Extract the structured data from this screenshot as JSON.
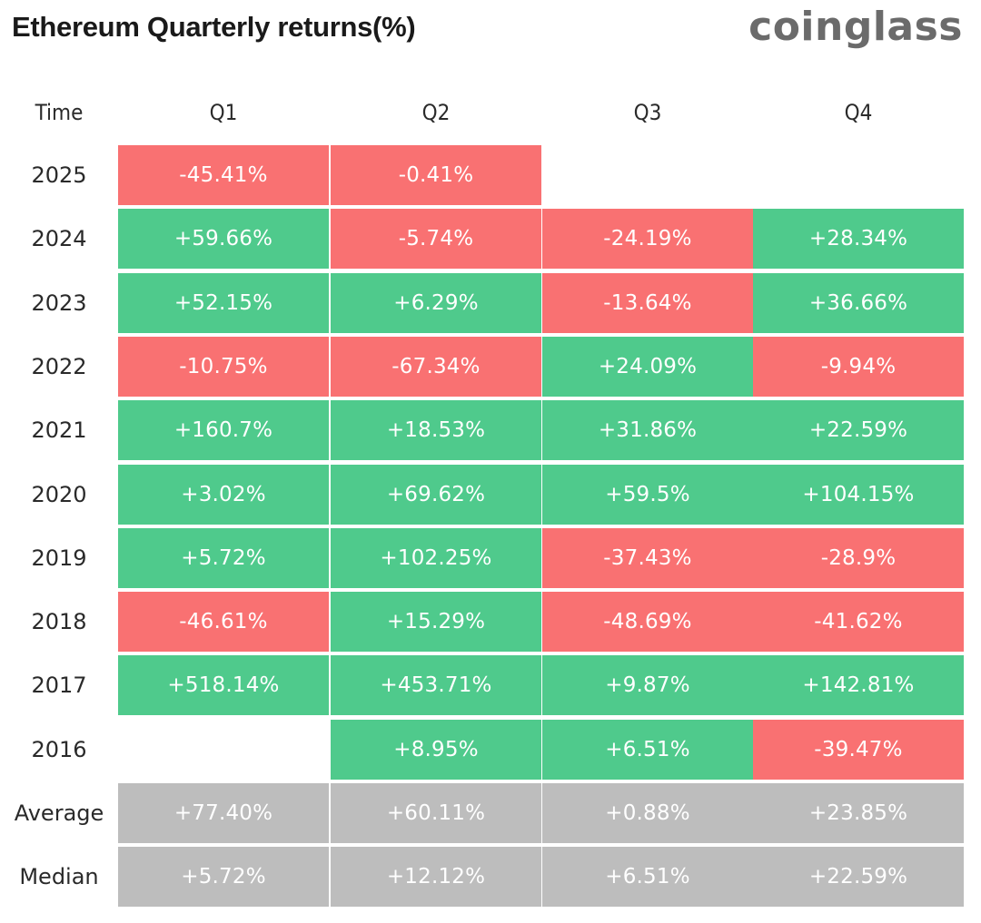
{
  "title": "Ethereum Quarterly returns(%)",
  "brand": "coinglass",
  "colors": {
    "positive": "#4fca8c",
    "negative": "#f97172",
    "stat": "#bdbdbd"
  },
  "chart_data": {
    "type": "table",
    "title": "Ethereum Quarterly returns(%)",
    "row_header_label": "Time",
    "columns": [
      "Q1",
      "Q2",
      "Q3",
      "Q4"
    ],
    "rows": [
      {
        "label": "2025",
        "kind": "year",
        "values": [
          "-45.41%",
          "-0.41%",
          null,
          null
        ]
      },
      {
        "label": "2024",
        "kind": "year",
        "values": [
          "+59.66%",
          "-5.74%",
          "-24.19%",
          "+28.34%"
        ]
      },
      {
        "label": "2023",
        "kind": "year",
        "values": [
          "+52.15%",
          "+6.29%",
          "-13.64%",
          "+36.66%"
        ]
      },
      {
        "label": "2022",
        "kind": "year",
        "values": [
          "-10.75%",
          "-67.34%",
          "+24.09%",
          "-9.94%"
        ]
      },
      {
        "label": "2021",
        "kind": "year",
        "values": [
          "+160.7%",
          "+18.53%",
          "+31.86%",
          "+22.59%"
        ]
      },
      {
        "label": "2020",
        "kind": "year",
        "values": [
          "+3.02%",
          "+69.62%",
          "+59.5%",
          "+104.15%"
        ]
      },
      {
        "label": "2019",
        "kind": "year",
        "values": [
          "+5.72%",
          "+102.25%",
          "-37.43%",
          "-28.9%"
        ]
      },
      {
        "label": "2018",
        "kind": "year",
        "values": [
          "-46.61%",
          "+15.29%",
          "-48.69%",
          "-41.62%"
        ]
      },
      {
        "label": "2017",
        "kind": "year",
        "values": [
          "+518.14%",
          "+453.71%",
          "+9.87%",
          "+142.81%"
        ]
      },
      {
        "label": "2016",
        "kind": "year",
        "values": [
          null,
          "+8.95%",
          "+6.51%",
          "-39.47%"
        ]
      },
      {
        "label": "Average",
        "kind": "stat",
        "values": [
          "+77.40%",
          "+60.11%",
          "+0.88%",
          "+23.85%"
        ]
      },
      {
        "label": "Median",
        "kind": "stat",
        "values": [
          "+5.72%",
          "+12.12%",
          "+6.51%",
          "+22.59%"
        ]
      }
    ]
  }
}
